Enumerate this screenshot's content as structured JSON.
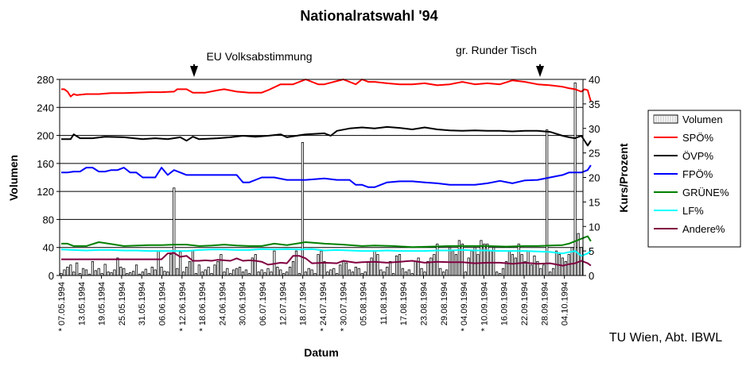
{
  "chart_data": {
    "type": "bar+line",
    "title": "Nationalratswahl '94",
    "xlabel": "Datum",
    "ylabel_left": "Volumen",
    "ylabel_right": "Kurs/Prozent",
    "ylim_left": [
      0,
      280
    ],
    "ylim_right": [
      0,
      40
    ],
    "yticks_left": [
      "0",
      "40",
      "80",
      "120",
      "160",
      "200",
      "240",
      "280"
    ],
    "yticks_right": [
      "0",
      "5",
      "10",
      "15",
      "20",
      "25",
      "30",
      "35",
      "40"
    ],
    "grid": "horizontal",
    "legend_placement": "right",
    "x_tick_labels": [
      "* 07.05.1994",
      "13.05.1994",
      "19.05.1994",
      "25.05.1994",
      "31.05.1994",
      "06.06.1994",
      "* 12.06.1994",
      "* 18.06.1994",
      "24.06.1994",
      "30.06.1994",
      "06.07.1994",
      "12.07.1994",
      "18.07.1994",
      "* 24.07.1994",
      "* 30.07.1994",
      "05.08.1994",
      "11.08.1994",
      "17.08.1994",
      "23.08.1994",
      "29.08.1994",
      "* 04.09.1994",
      "* 10.09.1994",
      "16.09.1994",
      "22.09.1994",
      "28.09.1994",
      "04.10.1994"
    ],
    "annotations": [
      {
        "text": "EU Volksabstimmung",
        "date": "12.06.1994"
      },
      {
        "text": "gr. Runder Tisch",
        "date": "29.09.1994"
      }
    ],
    "volume": {
      "name": "Volumen",
      "axis": "left",
      "values": [
        3,
        8,
        12,
        15,
        5,
        18,
        3,
        10,
        8,
        2,
        20,
        7,
        10,
        3,
        16,
        5,
        4,
        8,
        25,
        12,
        10,
        3,
        4,
        6,
        15,
        2,
        5,
        9,
        3,
        12,
        8,
        35,
        12,
        6,
        5,
        30,
        125,
        10,
        34,
        5,
        12,
        20,
        35,
        3,
        15,
        5,
        8,
        12,
        3,
        15,
        20,
        30,
        5,
        10,
        3,
        8,
        10,
        12,
        5,
        8,
        3,
        25,
        30,
        5,
        8,
        4,
        10,
        5,
        35,
        12,
        8,
        3,
        5,
        12,
        20,
        35,
        3,
        190,
        5,
        10,
        8,
        3,
        30,
        35,
        20,
        5,
        8,
        10,
        3,
        15,
        20,
        18,
        8,
        5,
        12,
        10,
        3,
        5,
        20,
        25,
        35,
        30,
        8,
        5,
        12,
        20,
        3,
        28,
        30,
        10,
        5,
        8,
        3,
        20,
        25,
        10,
        5,
        20,
        25,
        30,
        45,
        10,
        5,
        8,
        40,
        35,
        30,
        50,
        45,
        5,
        25,
        35,
        40,
        30,
        50,
        45,
        45,
        35,
        40,
        5,
        3,
        10,
        20,
        35,
        30,
        25,
        45,
        30,
        20,
        35,
        15,
        28,
        20,
        10,
        15,
        208,
        5,
        10,
        35,
        30,
        25,
        20,
        30,
        40,
        275,
        60,
        40
      ],
      "color": "#ffffff"
    },
    "series": [
      {
        "name": "SPÖ%",
        "color": "#ff0000",
        "x": [
          0,
          1,
          2,
          3,
          4,
          5,
          8,
          12,
          16,
          20,
          24,
          28,
          32,
          36,
          37,
          40,
          42,
          46,
          50,
          52,
          56,
          60,
          64,
          66,
          70,
          74,
          78,
          82,
          84,
          90,
          94,
          96,
          98,
          100,
          104,
          108,
          112,
          116,
          120,
          124,
          128,
          132,
          136,
          140,
          144,
          148,
          152,
          156,
          160,
          162,
          164,
          166,
          167,
          168,
          169
        ],
        "y": [
          38,
          38,
          37.5,
          36.5,
          37,
          36.8,
          37,
          37,
          37.2,
          37.2,
          37.3,
          37.4,
          37.4,
          37.5,
          38,
          38,
          37.3,
          37.3,
          37.8,
          38,
          37.5,
          37.3,
          37.3,
          37.8,
          39,
          39,
          40,
          39,
          39,
          40,
          39,
          40,
          39.5,
          39.5,
          39.2,
          39,
          39,
          39.2,
          38.8,
          39,
          39.5,
          39,
          39.2,
          39,
          39.8,
          39.5,
          39,
          38.8,
          38.5,
          38.2,
          38,
          37.5,
          38,
          37.8,
          35.5
        ]
      },
      {
        "name": "ÖVP%",
        "color": "#000000",
        "x": [
          0,
          3,
          4,
          6,
          10,
          14,
          20,
          26,
          30,
          34,
          38,
          40,
          42,
          44,
          50,
          54,
          58,
          62,
          66,
          70,
          72,
          78,
          84,
          86,
          88,
          92,
          96,
          100,
          104,
          108,
          112,
          116,
          120,
          124,
          128,
          132,
          136,
          140,
          144,
          148,
          152,
          156,
          160,
          162,
          164,
          166,
          168,
          169
        ],
        "y": [
          27.8,
          27.8,
          28.8,
          28,
          28,
          28.3,
          28.2,
          27.8,
          28,
          27.8,
          28.2,
          27.5,
          28.3,
          27.8,
          28,
          28.2,
          28.5,
          28.3,
          28.5,
          28.8,
          28.2,
          28.8,
          29,
          28.5,
          29.5,
          30,
          30.2,
          30,
          30.3,
          30.1,
          29.8,
          30.2,
          29.8,
          29.6,
          29.5,
          29.6,
          29.5,
          29.5,
          29.4,
          29.5,
          29.5,
          29.3,
          28.5,
          28.2,
          28,
          28.5,
          26.5,
          27.5
        ]
      },
      {
        "name": "FPÖ%",
        "color": "#0000ff",
        "x": [
          0,
          2,
          4,
          6,
          8,
          10,
          12,
          14,
          16,
          18,
          20,
          22,
          24,
          26,
          28,
          30,
          32,
          34,
          36,
          40,
          44,
          48,
          52,
          56,
          58,
          60,
          64,
          66,
          68,
          72,
          78,
          84,
          88,
          92,
          94,
          96,
          98,
          100,
          104,
          108,
          112,
          116,
          120,
          124,
          128,
          132,
          136,
          140,
          144,
          148,
          152,
          156,
          160,
          162,
          164,
          166,
          168,
          169
        ],
        "y": [
          21,
          21,
          21.2,
          21.2,
          22,
          22,
          21.2,
          21.2,
          21.5,
          21.5,
          22,
          21,
          21,
          20,
          20,
          20,
          22,
          20.5,
          21.5,
          20.5,
          20.5,
          20.5,
          20.5,
          20.5,
          19,
          19,
          20,
          20,
          20,
          19.5,
          19.5,
          19.8,
          19.5,
          19.5,
          18.5,
          18.5,
          18,
          18,
          19,
          19.2,
          19.2,
          19,
          18.8,
          18.5,
          18.5,
          18.5,
          18.8,
          19.3,
          18.8,
          19.4,
          19.5,
          20,
          20.5,
          21,
          21,
          21,
          21.5,
          22.5
        ]
      },
      {
        "name": "GRÜNE%",
        "color": "#008000",
        "x": [
          0,
          2,
          4,
          8,
          12,
          20,
          28,
          32,
          36,
          40,
          44,
          48,
          52,
          56,
          60,
          64,
          68,
          72,
          78,
          84,
          90,
          96,
          100,
          106,
          112,
          118,
          124,
          130,
          136,
          142,
          148,
          152,
          156,
          160,
          162,
          164,
          166,
          168,
          169
        ],
        "y": [
          6.5,
          6.5,
          6,
          6,
          6.8,
          6,
          6.2,
          6.2,
          6.3,
          6.3,
          6,
          6.1,
          6.3,
          6.1,
          6,
          6,
          6.5,
          6.2,
          6.8,
          6.5,
          6.3,
          6,
          6.1,
          6,
          5.8,
          5.9,
          6,
          6,
          6,
          5.9,
          6,
          6,
          6.1,
          6.2,
          6.5,
          7,
          7.5,
          8,
          7
        ]
      },
      {
        "name": "LF%",
        "color": "#00ffff",
        "x": [
          0,
          4,
          8,
          12,
          16,
          20,
          24,
          28,
          32,
          36,
          40,
          44,
          48,
          52,
          56,
          60,
          64,
          68,
          72,
          76,
          80,
          84,
          88,
          92,
          96,
          100,
          104,
          108,
          112,
          116,
          120,
          124,
          128,
          132,
          136,
          140,
          144,
          148,
          152,
          156,
          160,
          164,
          166,
          168,
          169
        ],
        "y": [
          5.3,
          5.2,
          5.1,
          5.2,
          5.2,
          5.1,
          5.1,
          5,
          5,
          5,
          5,
          5.2,
          5.3,
          5.3,
          5.2,
          5.2,
          5.4,
          5.3,
          5.4,
          5.3,
          5.4,
          5.1,
          5.2,
          5.1,
          5,
          5,
          5.1,
          5,
          5,
          5,
          5.1,
          5.1,
          5.2,
          5.1,
          5.1,
          5,
          5,
          5,
          4.9,
          4.8,
          4.5,
          5,
          4,
          4.5,
          5
        ]
      },
      {
        "name": "Andere%",
        "color": "#800040",
        "x": [
          0,
          4,
          8,
          12,
          16,
          20,
          24,
          28,
          32,
          34,
          36,
          38,
          40,
          42,
          44,
          46,
          48,
          50,
          52,
          54,
          56,
          58,
          60,
          62,
          64,
          66,
          68,
          70,
          72,
          74,
          76,
          78,
          80,
          84,
          88,
          90,
          94,
          96,
          100,
          104,
          108,
          112,
          116,
          120,
          124,
          128,
          132,
          136,
          140,
          144,
          148,
          152,
          156,
          160,
          162,
          164,
          166,
          168,
          169
        ],
        "y": [
          3.3,
          3.3,
          3.3,
          3.3,
          3.3,
          3.3,
          3.3,
          3.3,
          3.3,
          4.5,
          4.6,
          3.8,
          4,
          3,
          3,
          3.1,
          3,
          3.2,
          3.1,
          3,
          3.5,
          3,
          3.1,
          3,
          2.8,
          2.2,
          2.4,
          2.6,
          2.5,
          4,
          4,
          3.5,
          2.5,
          2.6,
          2.5,
          3,
          2.6,
          2.7,
          2.8,
          2.6,
          2.8,
          3,
          2.6,
          2.8,
          2.7,
          2.7,
          2.5,
          2.6,
          2.6,
          2.4,
          2.6,
          2.4,
          2.5,
          2,
          2.3,
          2.5,
          3,
          2.5,
          2
        ]
      }
    ]
  },
  "footer": "TU Wien, Abt. IBWL"
}
